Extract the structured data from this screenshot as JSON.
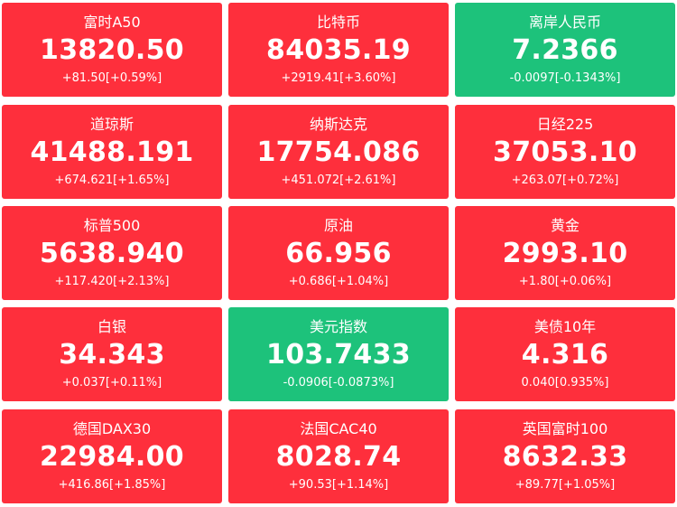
{
  "colors": {
    "up": "#fe2f3c",
    "down": "#1dc27b",
    "text": "#ffffff"
  },
  "tiles": [
    {
      "name": "富时A50",
      "price": "13820.50",
      "change": "+81.50[+0.59%]",
      "trend": "up"
    },
    {
      "name": "比特币",
      "price": "84035.19",
      "change": "+2919.41[+3.60%]",
      "trend": "up"
    },
    {
      "name": "离岸人民币",
      "price": "7.2366",
      "change": "-0.0097[-0.1343%]",
      "trend": "down"
    },
    {
      "name": "道琼斯",
      "price": "41488.191",
      "change": "+674.621[+1.65%]",
      "trend": "up"
    },
    {
      "name": "纳斯达克",
      "price": "17754.086",
      "change": "+451.072[+2.61%]",
      "trend": "up"
    },
    {
      "name": "日经225",
      "price": "37053.10",
      "change": "+263.07[+0.72%]",
      "trend": "up"
    },
    {
      "name": "标普500",
      "price": "5638.940",
      "change": "+117.420[+2.13%]",
      "trend": "up"
    },
    {
      "name": "原油",
      "price": "66.956",
      "change": "+0.686[+1.04%]",
      "trend": "up"
    },
    {
      "name": "黄金",
      "price": "2993.10",
      "change": "+1.80[+0.06%]",
      "trend": "up"
    },
    {
      "name": "白银",
      "price": "34.343",
      "change": "+0.037[+0.11%]",
      "trend": "up"
    },
    {
      "name": "美元指数",
      "price": "103.7433",
      "change": "-0.0906[-0.0873%]",
      "trend": "down"
    },
    {
      "name": "美债10年",
      "price": "4.316",
      "change": "0.040[0.935%]",
      "trend": "up"
    },
    {
      "name": "德国DAX30",
      "price": "22984.00",
      "change": "+416.86[+1.85%]",
      "trend": "up"
    },
    {
      "name": "法国CAC40",
      "price": "8028.74",
      "change": "+90.53[+1.14%]",
      "trend": "up"
    },
    {
      "name": "英国富时100",
      "price": "8632.33",
      "change": "+89.77[+1.05%]",
      "trend": "up"
    }
  ]
}
